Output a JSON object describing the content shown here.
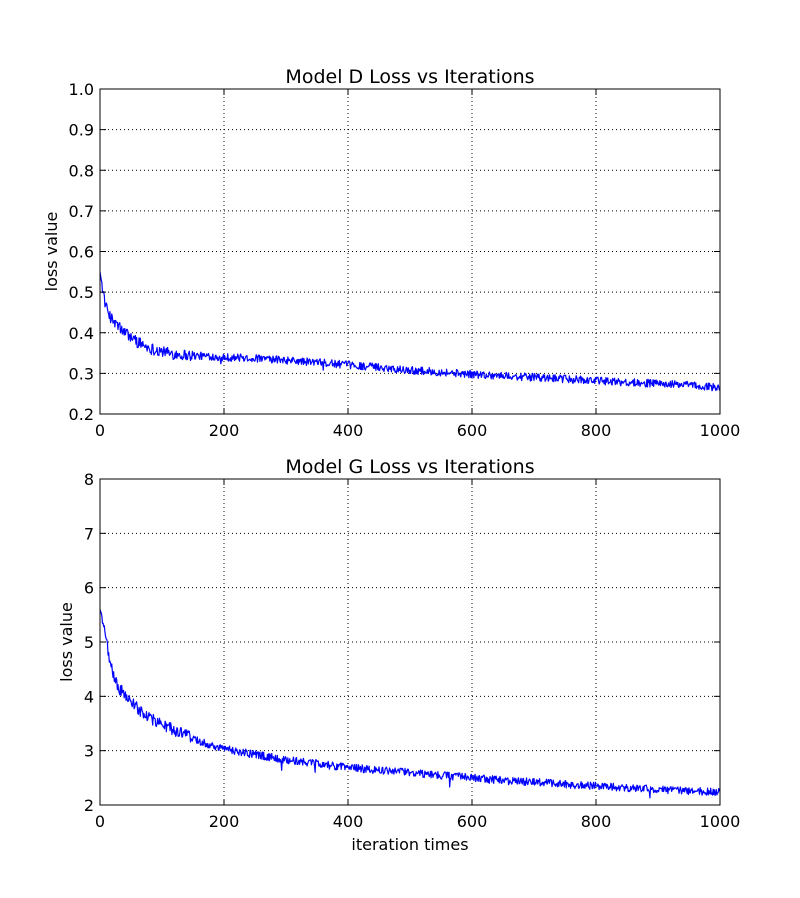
{
  "chart_data": [
    {
      "type": "line",
      "title": "Model D Loss vs Iterations",
      "xlabel": "",
      "ylabel": "loss value",
      "xlim": [
        0,
        1000
      ],
      "ylim": [
        0.2,
        1.0
      ],
      "xticks": [
        0,
        200,
        400,
        600,
        800,
        1000
      ],
      "xtick_labels": [
        "0",
        "200",
        "400",
        "600",
        "800",
        "1000"
      ],
      "yticks": [
        0.2,
        0.3,
        0.4,
        0.5,
        0.6,
        0.7,
        0.8,
        0.9,
        1.0
      ],
      "ytick_labels": [
        "0.2",
        "0.3",
        "0.4",
        "0.5",
        "0.6",
        "0.7",
        "0.8",
        "0.9",
        "1.0"
      ],
      "grid": true,
      "series": [
        {
          "color": "#0000ff",
          "x": [
            0,
            5,
            10,
            20,
            30,
            40,
            50,
            60,
            70,
            80,
            90,
            100,
            110,
            120,
            140,
            160,
            180,
            200,
            250,
            300,
            350,
            400,
            450,
            500,
            550,
            600,
            650,
            700,
            750,
            800,
            850,
            900,
            950,
            1000
          ],
          "y": [
            0.55,
            0.5,
            0.46,
            0.43,
            0.415,
            0.4,
            0.39,
            0.378,
            0.37,
            0.362,
            0.358,
            0.354,
            0.35,
            0.348,
            0.345,
            0.343,
            0.342,
            0.34,
            0.337,
            0.332,
            0.327,
            0.321,
            0.315,
            0.308,
            0.303,
            0.298,
            0.294,
            0.29,
            0.286,
            0.282,
            0.278,
            0.275,
            0.271,
            0.265
          ]
        }
      ]
    },
    {
      "type": "line",
      "title": "Model G Loss vs Iterations",
      "xlabel": "iteration times",
      "ylabel": "loss value",
      "xlim": [
        0,
        1000
      ],
      "ylim": [
        2,
        8
      ],
      "xticks": [
        0,
        200,
        400,
        600,
        800,
        1000
      ],
      "xtick_labels": [
        "0",
        "200",
        "400",
        "600",
        "800",
        "1000"
      ],
      "yticks": [
        2,
        3,
        4,
        5,
        6,
        7,
        8
      ],
      "ytick_labels": [
        "2",
        "3",
        "4",
        "5",
        "6",
        "7",
        "8"
      ],
      "grid": true,
      "series": [
        {
          "color": "#0000ff",
          "x": [
            0,
            3,
            6,
            10,
            15,
            20,
            25,
            30,
            40,
            50,
            60,
            70,
            80,
            100,
            120,
            140,
            160,
            180,
            200,
            250,
            300,
            350,
            400,
            450,
            500,
            550,
            600,
            650,
            700,
            750,
            800,
            850,
            900,
            950,
            1000
          ],
          "y": [
            5.6,
            5.5,
            5.3,
            5.0,
            4.7,
            4.45,
            4.3,
            4.15,
            4.05,
            3.9,
            3.78,
            3.7,
            3.6,
            3.48,
            3.38,
            3.28,
            3.18,
            3.1,
            3.03,
            2.93,
            2.83,
            2.76,
            2.69,
            2.64,
            2.6,
            2.55,
            2.5,
            2.45,
            2.42,
            2.38,
            2.35,
            2.31,
            2.29,
            2.26,
            2.24
          ]
        }
      ]
    }
  ]
}
